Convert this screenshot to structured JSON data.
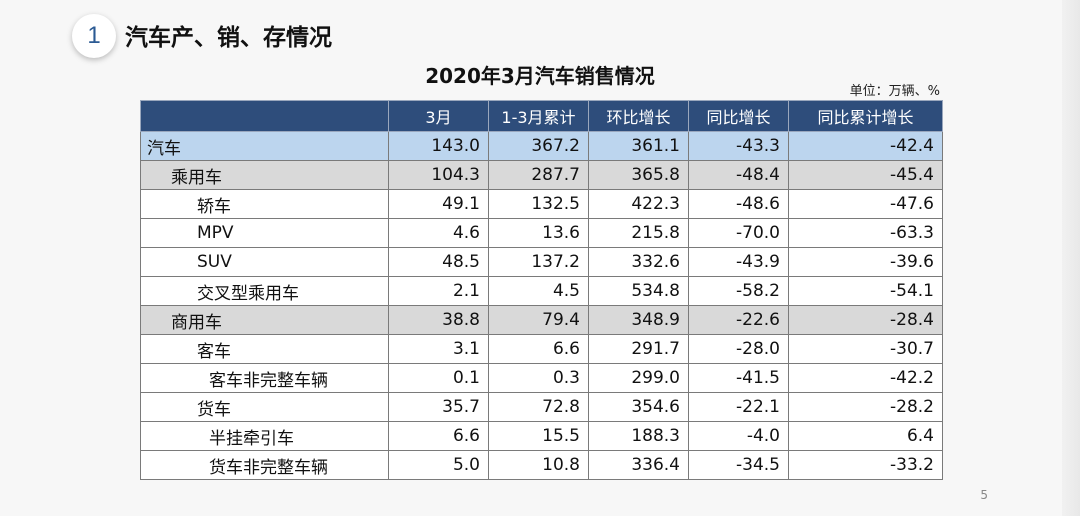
{
  "header": {
    "section_number": "1",
    "section_title": "汽车产、销、存情况"
  },
  "table": {
    "title": "2020年3月汽车销售情况",
    "unit": "单位：万辆、%",
    "columns": [
      "",
      "3月",
      "1-3月累计",
      "环比增长",
      "同比增长",
      "同比累计增长"
    ],
    "rows": [
      {
        "label": "汽车",
        "level": 0,
        "values": [
          "143.0",
          "367.2",
          "361.1",
          "-43.3",
          "-42.4"
        ]
      },
      {
        "label": "乘用车",
        "level": 1,
        "values": [
          "104.3",
          "287.7",
          "365.8",
          "-48.4",
          "-45.4"
        ]
      },
      {
        "label": "轿车",
        "level": 2,
        "values": [
          "49.1",
          "132.5",
          "422.3",
          "-48.6",
          "-47.6"
        ]
      },
      {
        "label": "MPV",
        "level": 2,
        "values": [
          "4.6",
          "13.6",
          "215.8",
          "-70.0",
          "-63.3"
        ]
      },
      {
        "label": "SUV",
        "level": 2,
        "values": [
          "48.5",
          "137.2",
          "332.6",
          "-43.9",
          "-39.6"
        ]
      },
      {
        "label": "交叉型乘用车",
        "level": 2,
        "values": [
          "2.1",
          "4.5",
          "534.8",
          "-58.2",
          "-54.1"
        ]
      },
      {
        "label": "商用车",
        "level": 1,
        "values": [
          "38.8",
          "79.4",
          "348.9",
          "-22.6",
          "-28.4"
        ]
      },
      {
        "label": "客车",
        "level": 2,
        "values": [
          "3.1",
          "6.6",
          "291.7",
          "-28.0",
          "-30.7"
        ]
      },
      {
        "label": "客车非完整车辆",
        "level": 3,
        "values": [
          "0.1",
          "0.3",
          "299.0",
          "-41.5",
          "-42.2"
        ]
      },
      {
        "label": "货车",
        "level": 2,
        "values": [
          "35.7",
          "72.8",
          "354.6",
          "-22.1",
          "-28.2"
        ]
      },
      {
        "label": "半挂牵引车",
        "level": 3,
        "values": [
          "6.6",
          "15.5",
          "188.3",
          "-4.0",
          "6.4"
        ]
      },
      {
        "label": "货车非完整车辆",
        "level": 3,
        "values": [
          "5.0",
          "10.8",
          "336.4",
          "-34.5",
          "-33.2"
        ]
      }
    ]
  },
  "page_number": "5",
  "colors": {
    "header_bg": "#2e4d7b",
    "total_row": "#bcd5ee",
    "subtotal_row": "#d9d9d9",
    "badge_text": "#2b5a93"
  }
}
